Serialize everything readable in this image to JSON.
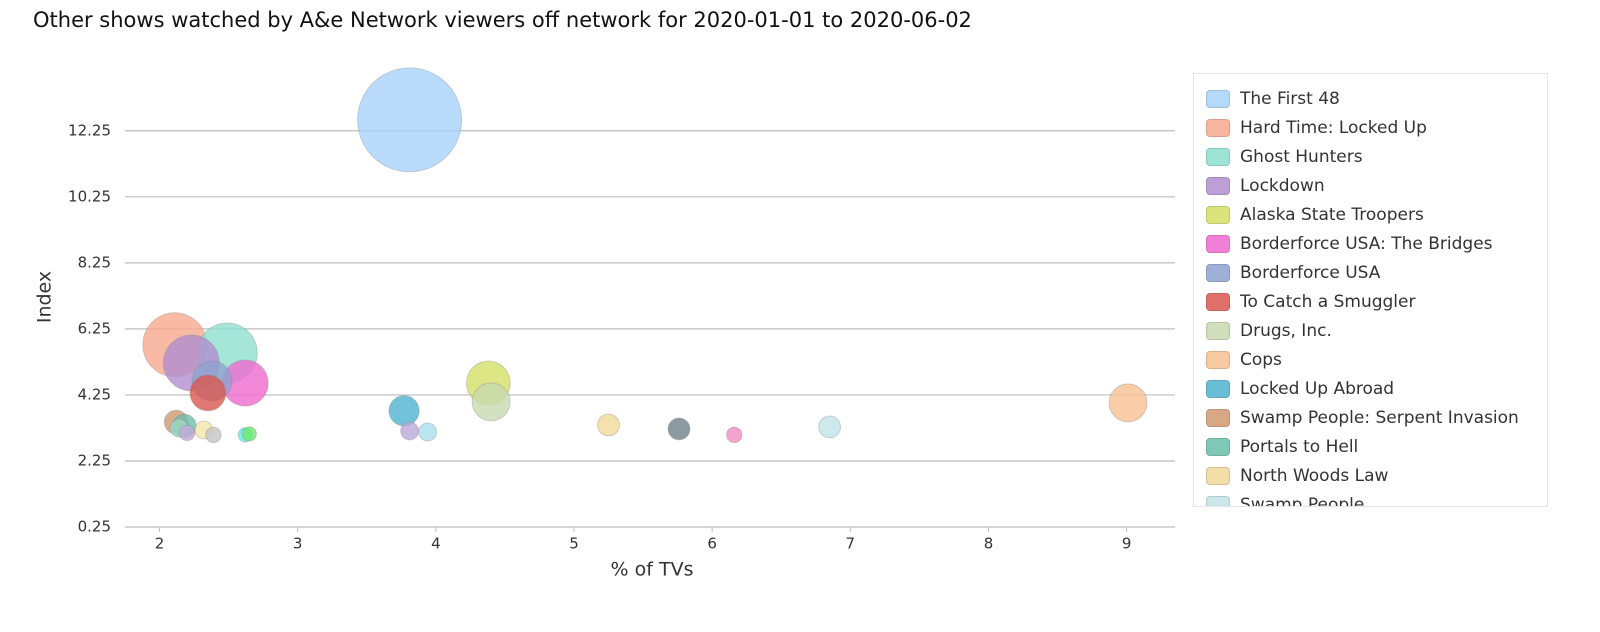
{
  "chart_data": {
    "type": "bubble",
    "title": "Other shows watched by A&e Network viewers off network for 2020-01-01 to 2020-06-02",
    "x_label": "% of TVs",
    "y_label": "Index",
    "xlim": [
      1.75,
      9.35
    ],
    "xticks": [
      2,
      3,
      4,
      5,
      6,
      7,
      8,
      9
    ],
    "ylim": [
      0.25,
      14
    ],
    "yticks": [
      0.25,
      2.25,
      4.25,
      6.25,
      8.25,
      10.25,
      12.25
    ],
    "grid": true,
    "legend": "right",
    "series": [
      {
        "name": "The First 48",
        "color": "#a9d3fb",
        "x": [
          3.81
        ],
        "values": [
          12.58
        ],
        "sizes": [
          27
        ]
      },
      {
        "name": "Hard Time: Locked Up",
        "color": "#f7a98f",
        "x": [
          2.11
        ],
        "values": [
          5.77
        ],
        "sizes": [
          10.2
        ]
      },
      {
        "name": "Ghost Hunters",
        "color": "#8ee0d0",
        "x": [
          2.49
        ],
        "values": [
          5.52
        ],
        "sizes": [
          9
        ]
      },
      {
        "name": "Lockdown",
        "color": "#b08fcf",
        "x": [
          2.23
        ],
        "values": [
          5.22
        ],
        "sizes": [
          7.8
        ]
      },
      {
        "name": "Alaska State Troopers",
        "color": "#d4e065",
        "x": [
          4.38
        ],
        "values": [
          4.61
        ],
        "sizes": [
          4.8
        ]
      },
      {
        "name": "Borderforce USA: The Bridges",
        "color": "#f06ad0",
        "x": [
          2.62
        ],
        "values": [
          4.61
        ],
        "sizes": [
          5.3
        ]
      },
      {
        "name": "Borderforce USA",
        "color": "#8fa3d0",
        "x": [
          2.38
        ],
        "values": [
          4.67
        ],
        "sizes": [
          4
        ]
      },
      {
        "name": "To Catch a Smuggler",
        "color": "#d9584f",
        "x": [
          2.35
        ],
        "values": [
          4.31
        ],
        "sizes": [
          3.2
        ]
      },
      {
        "name": "Drugs, Inc.",
        "color": "#c9d9b0",
        "x": [
          4.4
        ],
        "values": [
          4.04
        ],
        "sizes": [
          3.6
        ]
      },
      {
        "name": "Cops",
        "color": "#f7c192",
        "x": [
          9.01
        ],
        "values": [
          4.01
        ],
        "sizes": [
          3.6
        ]
      },
      {
        "name": "Locked Up Abroad",
        "color": "#4fb3d0",
        "x": [
          3.77
        ],
        "values": [
          3.77
        ],
        "sizes": [
          2.3
        ]
      },
      {
        "name": "Swamp People: Serpent Invasion",
        "color": "#d09a72",
        "x": [
          2.12
        ],
        "values": [
          3.43
        ],
        "sizes": [
          1.4
        ]
      },
      {
        "name": "Portals to Hell",
        "color": "#6bbfaa",
        "x": [
          2.18
        ],
        "values": [
          3.31
        ],
        "sizes": [
          1.4
        ]
      },
      {
        "name": "North Woods Law",
        "color": "#f2d99a",
        "x": [
          5.25
        ],
        "values": [
          3.34
        ],
        "sizes": [
          1.2
        ]
      },
      {
        "name": "Swamp People",
        "color": "#c2e3e6",
        "x": [
          6.85
        ],
        "values": [
          3.28
        ],
        "sizes": [
          1.2
        ]
      },
      {
        "name": null,
        "color": "#6f7f86",
        "x": [
          5.76
        ],
        "values": [
          3.22
        ],
        "sizes": [
          1.2
        ]
      },
      {
        "name": null,
        "color": "#9fd6c6",
        "x": [
          2.14
        ],
        "values": [
          3.25
        ],
        "sizes": [
          0.8
        ]
      },
      {
        "name": null,
        "color": "#f5e6a8",
        "x": [
          2.32
        ],
        "values": [
          3.19
        ],
        "sizes": [
          0.8
        ]
      },
      {
        "name": null,
        "color": "#c6a8dc",
        "x": [
          2.2
        ],
        "values": [
          3.1
        ],
        "sizes": [
          0.6
        ]
      },
      {
        "name": null,
        "color": "#c4c4c4",
        "x": [
          2.39
        ],
        "values": [
          3.04
        ],
        "sizes": [
          0.6
        ]
      },
      {
        "name": null,
        "color": "#5fe8e0",
        "x": [
          2.62
        ],
        "values": [
          3.04
        ],
        "sizes": [
          0.5
        ]
      },
      {
        "name": null,
        "color": "#6ee86e",
        "x": [
          2.65
        ],
        "values": [
          3.07
        ],
        "sizes": [
          0.5
        ]
      },
      {
        "name": null,
        "color": "#b9a8d8",
        "x": [
          3.81
        ],
        "values": [
          3.16
        ],
        "sizes": [
          0.8
        ]
      },
      {
        "name": null,
        "color": "#a9e0ee",
        "x": [
          3.94
        ],
        "values": [
          3.13
        ],
        "sizes": [
          0.8
        ]
      },
      {
        "name": null,
        "color": "#f08cc0",
        "x": [
          6.16
        ],
        "values": [
          3.04
        ],
        "sizes": [
          0.6
        ]
      }
    ]
  }
}
